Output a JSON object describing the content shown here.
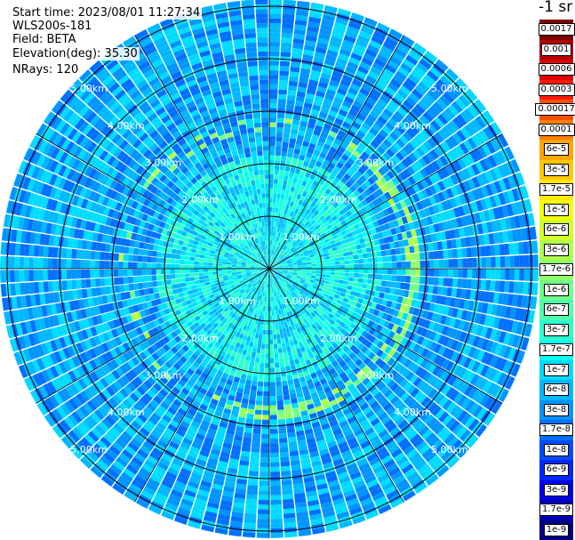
{
  "header": {
    "start_time": "Start time: 2023/08/01 11:27:34",
    "device": "WLS200s-181",
    "field": "Field: BETA",
    "elevation": "Elevation(deg): 35.30",
    "nrays": "NRays: 120"
  },
  "colorbar": {
    "unit_title": "-1 sr",
    "levels": [
      {
        "label": "0.0017",
        "color": "#7f0000"
      },
      {
        "label": "0.001",
        "color": "#b20000"
      },
      {
        "label": "0.0006",
        "color": "#e00000"
      },
      {
        "label": "0.0003",
        "color": "#ff1a00"
      },
      {
        "label": "0.00017",
        "color": "#ff4f00"
      },
      {
        "label": "0.0001",
        "color": "#ff7f00"
      },
      {
        "label": "6e-5",
        "color": "#ffa500"
      },
      {
        "label": "3e-5",
        "color": "#ffc800"
      },
      {
        "label": "1.7e-5",
        "color": "#ffe800"
      },
      {
        "label": "1e-5",
        "color": "#f2ff0a"
      },
      {
        "label": "6e-6",
        "color": "#d2ff2a"
      },
      {
        "label": "3e-6",
        "color": "#b2ff4a"
      },
      {
        "label": "1.7e-6",
        "color": "#91ff6a"
      },
      {
        "label": "1e-6",
        "color": "#70ff8a"
      },
      {
        "label": "6e-7",
        "color": "#4effab"
      },
      {
        "label": "3e-7",
        "color": "#2dffcc"
      },
      {
        "label": "1.7e-7",
        "color": "#0cffec"
      },
      {
        "label": "1e-7",
        "color": "#00dcff"
      },
      {
        "label": "6e-8",
        "color": "#00b8ff"
      },
      {
        "label": "3e-8",
        "color": "#0094ff"
      },
      {
        "label": "1.7e-8",
        "color": "#0070ff"
      },
      {
        "label": "1e-8",
        "color": "#004cff"
      },
      {
        "label": "6e-9",
        "color": "#0028ff"
      },
      {
        "label": "3e-9",
        "color": "#0000e8"
      },
      {
        "label": "1.7e-9",
        "color": "#0000b5"
      },
      {
        "label": "1e-9",
        "color": "#000080"
      }
    ]
  },
  "chart_data": {
    "type": "heatmap",
    "projection": "polar (plan position indicator)",
    "rays": 120,
    "range_rings_km": [
      1,
      2,
      3,
      4,
      5
    ],
    "range_labels": [
      "1.00km",
      "2.00km",
      "3.00km",
      "4.00km",
      "5.00km"
    ],
    "spoke_step_deg": 30,
    "background_level": "1e-7 to 1e-8",
    "features": [
      {
        "description": "inner region greener",
        "range_km": [
          0,
          2.2
        ],
        "level": "about 3e-7"
      },
      {
        "description": "ring of enhanced backscatter",
        "range_km": [
          2.6,
          2.9
        ],
        "level": "about 3e-6",
        "azimuth_deg": [
          40,
          190
        ]
      }
    ]
  }
}
